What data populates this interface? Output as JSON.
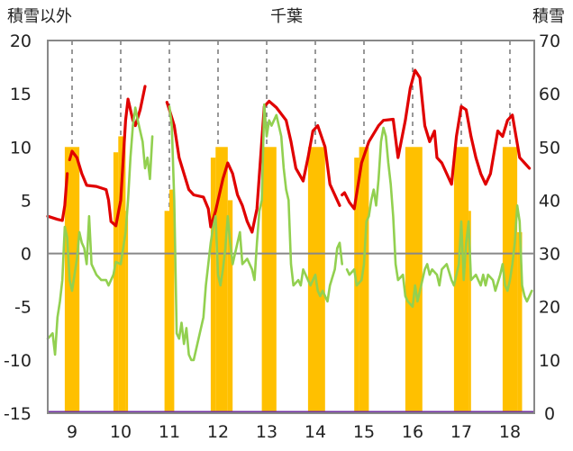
{
  "chart_data": {
    "type": "line",
    "title": "千葉",
    "y_left_label": "積雪以外",
    "y_right_label": "積雪",
    "y_left_range": [
      -15,
      20
    ],
    "y_left_ticks": [
      -15,
      -10,
      -5,
      0,
      5,
      10,
      15,
      20
    ],
    "y_right_range": [
      0,
      70
    ],
    "y_right_ticks": [
      0,
      10,
      20,
      30,
      40,
      50,
      60,
      70
    ],
    "x_range": [
      8.5,
      18.5
    ],
    "x_ticks": [
      9,
      10,
      11,
      12,
      13,
      14,
      15,
      16,
      17,
      18
    ],
    "grid": "dashed-vertical",
    "colors": {
      "red": "#e00000",
      "green": "#92d050",
      "bar": "#ffc000",
      "purple": "#7030a0",
      "grid": "#555555",
      "axis": "#888888"
    },
    "series": [
      {
        "color": "red",
        "segments": [
          [
            [
              8.5,
              3.5
            ],
            [
              8.7,
              3.2
            ],
            [
              8.8,
              3.1
            ],
            [
              8.85,
              4.5
            ],
            [
              8.9,
              7.5
            ]
          ],
          [
            [
              8.95,
              8.8
            ],
            [
              9.0,
              9.6
            ],
            [
              9.1,
              9.0
            ],
            [
              9.2,
              7.5
            ],
            [
              9.3,
              6.4
            ],
            [
              9.5,
              6.3
            ],
            [
              9.7,
              6.0
            ],
            [
              9.75,
              5.0
            ],
            [
              9.8,
              3.0
            ],
            [
              9.9,
              2.6
            ],
            [
              10.0,
              5.0
            ],
            [
              10.1,
              12.5
            ],
            [
              10.15,
              14.5
            ],
            [
              10.25,
              12.5
            ],
            [
              10.3,
              12.0
            ],
            [
              10.4,
              13.5
            ],
            [
              10.5,
              15.7
            ]
          ],
          [
            [
              10.95,
              14.2
            ],
            [
              11.0,
              13.5
            ],
            [
              11.1,
              12.0
            ],
            [
              11.2,
              9.0
            ],
            [
              11.3,
              7.5
            ],
            [
              11.4,
              6.0
            ],
            [
              11.5,
              5.5
            ],
            [
              11.7,
              5.3
            ],
            [
              11.8,
              4.2
            ],
            [
              11.85,
              2.5
            ],
            [
              11.95,
              4.0
            ],
            [
              12.1,
              7.0
            ],
            [
              12.2,
              8.5
            ],
            [
              12.3,
              7.5
            ],
            [
              12.4,
              5.5
            ],
            [
              12.5,
              4.5
            ],
            [
              12.6,
              3.0
            ],
            [
              12.7,
              2.0
            ],
            [
              12.8,
              4.2
            ],
            [
              12.95,
              13.8
            ],
            [
              13.05,
              14.3
            ],
            [
              13.2,
              13.7
            ],
            [
              13.4,
              12.5
            ],
            [
              13.5,
              10.5
            ],
            [
              13.6,
              8.0
            ],
            [
              13.75,
              6.8
            ],
            [
              13.85,
              9.0
            ],
            [
              13.95,
              11.5
            ],
            [
              14.05,
              12.0
            ],
            [
              14.2,
              10.0
            ],
            [
              14.3,
              6.5
            ],
            [
              14.5,
              4.5
            ]
          ],
          [
            [
              14.55,
              5.5
            ],
            [
              14.6,
              5.7
            ],
            [
              14.7,
              4.8
            ],
            [
              14.8,
              4.2
            ],
            [
              14.95,
              8.5
            ],
            [
              15.1,
              10.5
            ],
            [
              15.3,
              12.0
            ],
            [
              15.4,
              12.5
            ],
            [
              15.6,
              12.6
            ],
            [
              15.7,
              9.0
            ],
            [
              15.85,
              12.5
            ],
            [
              15.95,
              15.5
            ],
            [
              16.05,
              17.2
            ],
            [
              16.15,
              16.5
            ],
            [
              16.25,
              12.0
            ],
            [
              16.35,
              10.5
            ],
            [
              16.45,
              11.5
            ],
            [
              16.5,
              9.0
            ],
            [
              16.6,
              8.5
            ],
            [
              16.7,
              7.5
            ],
            [
              16.8,
              6.5
            ],
            [
              16.9,
              11.0
            ],
            [
              17.0,
              13.8
            ],
            [
              17.1,
              13.5
            ],
            [
              17.2,
              11.0
            ],
            [
              17.3,
              9.0
            ],
            [
              17.4,
              7.5
            ],
            [
              17.5,
              6.5
            ],
            [
              17.6,
              7.5
            ],
            [
              17.75,
              11.5
            ],
            [
              17.85,
              11.0
            ],
            [
              17.95,
              12.5
            ],
            [
              18.05,
              13.0
            ],
            [
              18.2,
              9.0
            ],
            [
              18.3,
              8.5
            ],
            [
              18.4,
              8.0
            ]
          ]
        ]
      },
      {
        "color": "green",
        "segments": [
          [
            [
              8.5,
              -8.0
            ],
            [
              8.6,
              -7.5
            ],
            [
              8.65,
              -9.5
            ],
            [
              8.7,
              -6.0
            ],
            [
              8.75,
              -4.5
            ],
            [
              8.8,
              -2.5
            ],
            [
              8.85,
              2.5
            ],
            [
              8.9,
              1.5
            ],
            [
              8.95,
              -2.5
            ],
            [
              9.0,
              -3.5
            ],
            [
              9.05,
              -2.0
            ],
            [
              9.1,
              -0.5
            ],
            [
              9.15,
              2.0
            ],
            [
              9.2,
              1.0
            ],
            [
              9.25,
              0.5
            ],
            [
              9.3,
              -1.0
            ],
            [
              9.35,
              3.5
            ],
            [
              9.4,
              -1.0
            ],
            [
              9.5,
              -2.0
            ],
            [
              9.6,
              -2.5
            ],
            [
              9.7,
              -2.5
            ],
            [
              9.75,
              -3.0
            ],
            [
              9.85,
              -2.0
            ],
            [
              9.9,
              -0.8
            ],
            [
              10.0,
              -1.0
            ],
            [
              10.1,
              2.0
            ],
            [
              10.15,
              5.0
            ],
            [
              10.2,
              9.0
            ],
            [
              10.25,
              12.0
            ],
            [
              10.3,
              13.7
            ],
            [
              10.35,
              12.5
            ],
            [
              10.45,
              10.5
            ],
            [
              10.5,
              8.0
            ],
            [
              10.55,
              9.0
            ],
            [
              10.6,
              7.0
            ],
            [
              10.65,
              11.0
            ]
          ],
          [
            [
              11.0,
              13.8
            ],
            [
              11.05,
              12.0
            ],
            [
              11.1,
              5.0
            ],
            [
              11.15,
              -7.5
            ],
            [
              11.2,
              -8.0
            ],
            [
              11.25,
              -6.5
            ],
            [
              11.3,
              -8.5
            ],
            [
              11.35,
              -7.0
            ],
            [
              11.4,
              -9.5
            ],
            [
              11.45,
              -10.0
            ],
            [
              11.5,
              -10.0
            ],
            [
              11.6,
              -8.0
            ],
            [
              11.7,
              -6.0
            ],
            [
              11.75,
              -3.0
            ],
            [
              11.8,
              -1.0
            ],
            [
              11.85,
              1.0
            ],
            [
              11.9,
              2.5
            ],
            [
              11.95,
              3.5
            ],
            [
              12.0,
              -2.0
            ],
            [
              12.05,
              -3.0
            ],
            [
              12.1,
              -1.5
            ],
            [
              12.15,
              0.5
            ],
            [
              12.2,
              3.5
            ],
            [
              12.25,
              1.0
            ],
            [
              12.3,
              -1.0
            ],
            [
              12.4,
              1.0
            ],
            [
              12.45,
              2.0
            ],
            [
              12.5,
              -1.0
            ],
            [
              12.6,
              -0.5
            ],
            [
              12.7,
              -1.5
            ],
            [
              12.75,
              -2.5
            ],
            [
              12.8,
              1.0
            ],
            [
              12.85,
              4.0
            ],
            [
              12.9,
              5.0
            ],
            [
              12.95,
              14.0
            ],
            [
              13.0,
              11.0
            ],
            [
              13.05,
              12.5
            ],
            [
              13.1,
              12.0
            ],
            [
              13.2,
              13.0
            ],
            [
              13.3,
              11.0
            ],
            [
              13.35,
              8.0
            ],
            [
              13.4,
              6.0
            ],
            [
              13.45,
              5.0
            ],
            [
              13.5,
              -1.0
            ],
            [
              13.55,
              -3.0
            ],
            [
              13.65,
              -2.5
            ],
            [
              13.7,
              -3.0
            ],
            [
              13.75,
              -1.5
            ],
            [
              13.8,
              -2.0
            ],
            [
              13.9,
              -3.0
            ],
            [
              14.0,
              -2.0
            ],
            [
              14.05,
              -3.5
            ],
            [
              14.1,
              -4.0
            ],
            [
              14.15,
              -3.5
            ],
            [
              14.2,
              -4.0
            ],
            [
              14.25,
              -4.5
            ],
            [
              14.3,
              -3.0
            ],
            [
              14.4,
              -1.5
            ],
            [
              14.45,
              0.5
            ],
            [
              14.5,
              1.0
            ],
            [
              14.55,
              -1.0
            ]
          ],
          [
            [
              14.65,
              -1.5
            ],
            [
              14.7,
              -2.0
            ],
            [
              14.8,
              -1.5
            ],
            [
              14.85,
              -3.0
            ],
            [
              14.95,
              -2.5
            ],
            [
              15.0,
              -1.0
            ],
            [
              15.05,
              3.0
            ],
            [
              15.1,
              3.5
            ],
            [
              15.15,
              5.0
            ],
            [
              15.2,
              6.0
            ],
            [
              15.25,
              4.5
            ],
            [
              15.3,
              7.0
            ],
            [
              15.35,
              10.5
            ],
            [
              15.4,
              11.8
            ],
            [
              15.45,
              11.0
            ],
            [
              15.5,
              8.5
            ],
            [
              15.55,
              6.5
            ],
            [
              15.6,
              3.5
            ],
            [
              15.65,
              -1.0
            ],
            [
              15.7,
              -2.5
            ],
            [
              15.8,
              -2.0
            ],
            [
              15.85,
              -4.0
            ],
            [
              15.9,
              -4.5
            ],
            [
              16.0,
              -5.0
            ],
            [
              16.05,
              -3.0
            ],
            [
              16.1,
              -4.5
            ],
            [
              16.2,
              -2.5
            ],
            [
              16.25,
              -1.5
            ],
            [
              16.3,
              -1.0
            ],
            [
              16.35,
              -2.0
            ],
            [
              16.4,
              -1.5
            ],
            [
              16.5,
              -2.0
            ],
            [
              16.55,
              -3.0
            ],
            [
              16.6,
              -1.5
            ],
            [
              16.7,
              -1.0
            ],
            [
              16.8,
              -2.5
            ],
            [
              16.85,
              -3.0
            ],
            [
              16.9,
              -2.0
            ],
            [
              16.95,
              -1.0
            ],
            [
              17.0,
              3.0
            ],
            [
              17.05,
              -2.5
            ],
            [
              17.1,
              1.0
            ],
            [
              17.15,
              3.0
            ],
            [
              17.2,
              -2.5
            ],
            [
              17.3,
              -2.0
            ],
            [
              17.4,
              -3.0
            ],
            [
              17.45,
              -2.0
            ],
            [
              17.5,
              -3.0
            ],
            [
              17.55,
              -2.0
            ],
            [
              17.65,
              -2.5
            ],
            [
              17.7,
              -3.5
            ],
            [
              17.8,
              -2.0
            ],
            [
              17.85,
              -1.0
            ],
            [
              17.9,
              -3.0
            ],
            [
              17.95,
              -3.5
            ],
            [
              18.0,
              -2.5
            ],
            [
              18.05,
              -1.0
            ],
            [
              18.1,
              1.0
            ],
            [
              18.15,
              4.5
            ],
            [
              18.2,
              3.0
            ],
            [
              18.25,
              -3.0
            ],
            [
              18.3,
              -4.0
            ],
            [
              18.35,
              -4.5
            ],
            [
              18.4,
              -4.0
            ],
            [
              18.45,
              -3.5
            ]
          ]
        ]
      }
    ],
    "snow_bars": [
      {
        "x0": 8.85,
        "x1": 9.0,
        "v": 50
      },
      {
        "x0": 9.0,
        "x1": 9.15,
        "v": 46
      },
      {
        "x0": 9.0,
        "x1": 9.15,
        "v": 50
      },
      {
        "x0": 9.85,
        "x1": 9.95,
        "v": 49
      },
      {
        "x0": 9.95,
        "x1": 10.1,
        "v": 52
      },
      {
        "x0": 10.1,
        "x1": 10.15,
        "v": 38
      },
      {
        "x0": 10.9,
        "x1": 11.0,
        "v": 38
      },
      {
        "x0": 11.0,
        "x1": 11.1,
        "v": 42
      },
      {
        "x0": 11.85,
        "x1": 11.95,
        "v": 48
      },
      {
        "x0": 11.95,
        "x1": 12.2,
        "v": 50
      },
      {
        "x0": 12.2,
        "x1": 12.3,
        "v": 40
      },
      {
        "x0": 12.9,
        "x1": 13.2,
        "v": 50
      },
      {
        "x0": 13.85,
        "x1": 14.2,
        "v": 50
      },
      {
        "x0": 14.8,
        "x1": 14.9,
        "v": 48
      },
      {
        "x0": 14.9,
        "x1": 15.1,
        "v": 50
      },
      {
        "x0": 15.85,
        "x1": 16.2,
        "v": 50
      },
      {
        "x0": 16.85,
        "x1": 17.15,
        "v": 50
      },
      {
        "x0": 17.15,
        "x1": 17.2,
        "v": 38
      },
      {
        "x0": 17.85,
        "x1": 18.15,
        "v": 50
      },
      {
        "x0": 18.15,
        "x1": 18.25,
        "v": 34
      }
    ],
    "baseline_purple": -15
  }
}
